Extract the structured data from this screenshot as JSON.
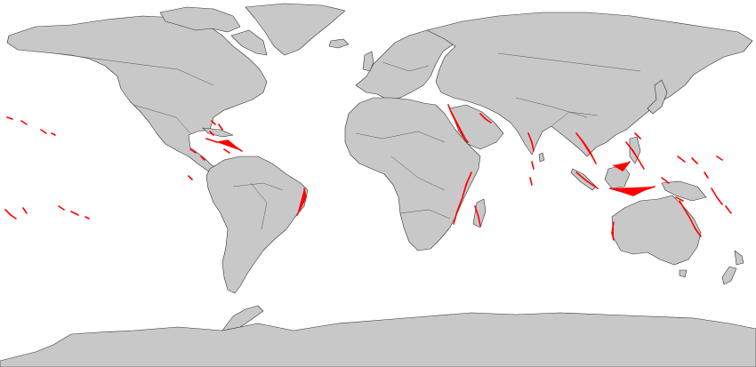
{
  "map": {
    "projection": "equirectangular",
    "land_color": "#c8c8c8",
    "border_color": "#333333",
    "ocean_color": "#ffffff",
    "highlight_color": "#ff0000",
    "highlight_layer": "coral-reef-locations"
  }
}
